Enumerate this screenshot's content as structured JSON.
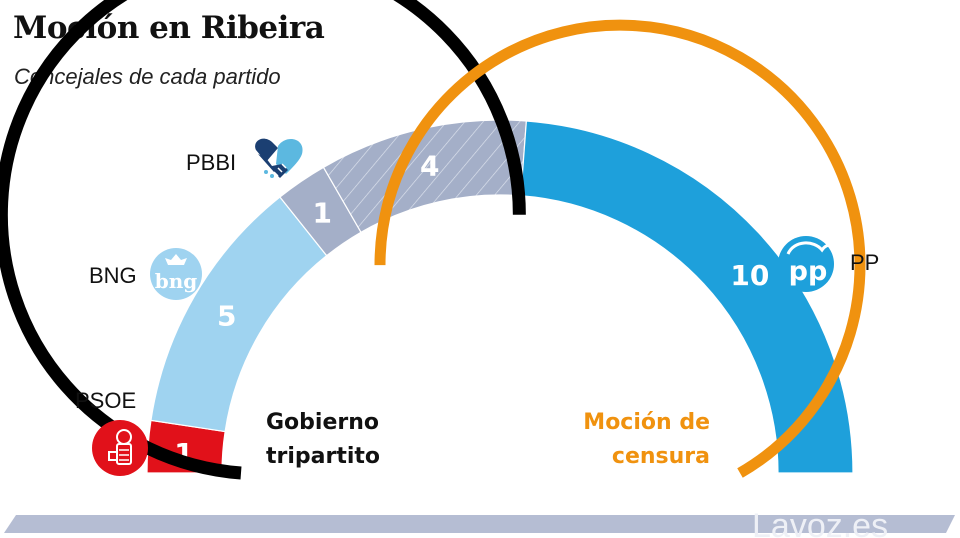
{
  "header": {
    "title": "Moción en Ribeira",
    "subtitle": "Concejales de cada partido"
  },
  "chart_data": {
    "type": "pie",
    "variant": "hemicycle",
    "title": "Moción en Ribeira",
    "subtitle": "Concejales de cada partido",
    "total_seats": 21,
    "series": [
      {
        "name": "PSOE",
        "label": "PSOE",
        "value": 1,
        "color": "#e1111a",
        "logo": "psoe-rose-fist-icon",
        "hatched": false
      },
      {
        "name": "BNG",
        "label": "BNG",
        "value": 5,
        "color": "#9fd3f0",
        "logo": "bng-logo-icon",
        "hatched": false
      },
      {
        "name": "PBBI",
        "label": "PBBI",
        "value": 1,
        "color": "#a4afc8",
        "logo": "pbbi-handshake-heart-icon",
        "hatched": false
      },
      {
        "name": "PBBI",
        "label": "",
        "value": 4,
        "color": "#a4afc8",
        "logo": "",
        "hatched": true
      },
      {
        "name": "PP",
        "label": "PP",
        "value": 10,
        "color": "#1ea0db",
        "logo": "pp-logo-icon",
        "hatched": false
      }
    ],
    "blocs": [
      {
        "name": "Gobierno tripartito",
        "line1": "Gobierno",
        "line2": "tripartito",
        "seats": 11,
        "from_seat": 0,
        "to_seat": 11,
        "color": "#000000"
      },
      {
        "name": "Moción de censura",
        "line1": "Moción de",
        "line2": "censura",
        "seats": 14,
        "from_seat": 7,
        "to_seat": 21,
        "color": "#f0920f"
      }
    ],
    "logo_text": {
      "bng": "bng",
      "pp": "pp"
    }
  },
  "footer": {
    "watermark": "Lavoz.es",
    "band_color": "#b5bdd3"
  }
}
